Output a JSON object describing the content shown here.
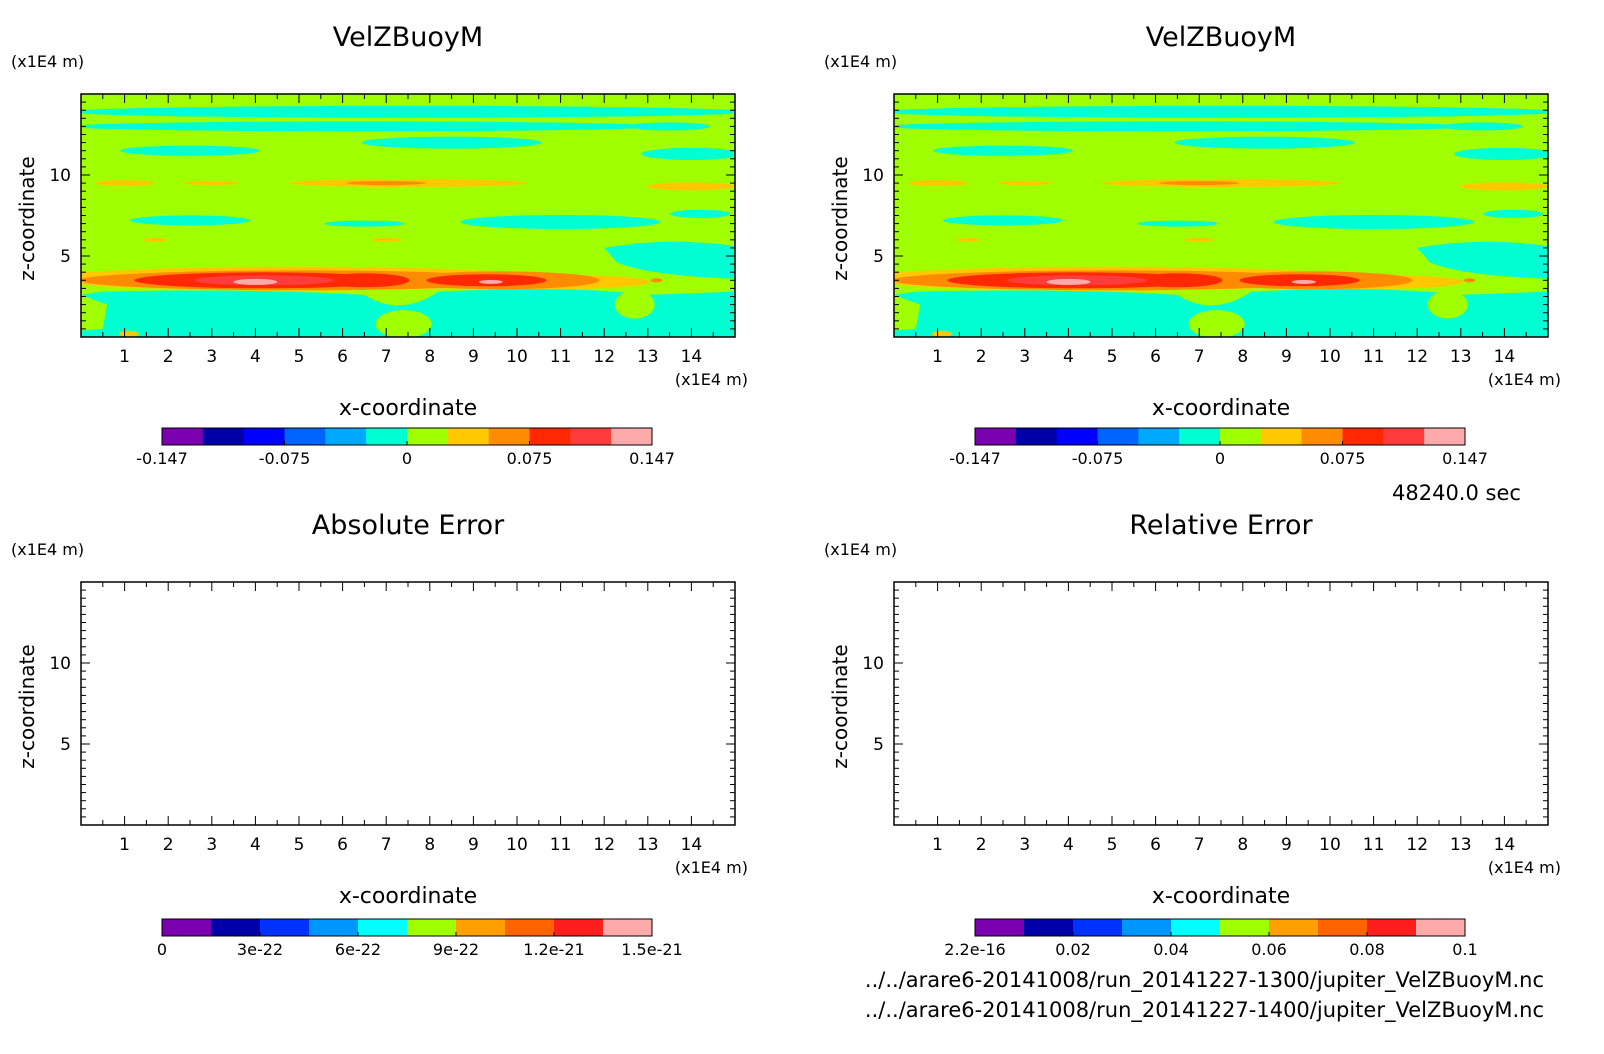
{
  "time_label": "48240.0 sec",
  "files": [
    "../../arare6-20141008/run_20141227-1300/jupiter_VelZBuoyM.nc",
    "../../arare6-20141008/run_20141227-1400/jupiter_VelZBuoyM.nc"
  ],
  "chart_data": [
    {
      "type": "heatmap",
      "title": "VelZBuoyM",
      "xlabel": "x-coordinate",
      "ylabel": "z-coordinate",
      "x_unit": "(x1E4 m)",
      "y_unit": "(x1E4 m)",
      "xlim": [
        0,
        15
      ],
      "ylim": [
        0,
        15
      ],
      "x_ticks": [
        "1",
        "2",
        "3",
        "4",
        "5",
        "6",
        "7",
        "8",
        "9",
        "10",
        "11",
        "12",
        "13",
        "14"
      ],
      "y_ticks": [
        "5",
        "10"
      ],
      "colorbar": {
        "ticks": [
          "-0.147",
          "-0.075",
          "0",
          "0.075",
          "0.147"
        ],
        "colors": [
          "#7a00b0",
          "#0000a8",
          "#0000ff",
          "#0064ff",
          "#00a8ff",
          "#00ffd2",
          "#a0ff00",
          "#ffc800",
          "#ff8c00",
          "#ff2800",
          "#ff3c3c",
          "#ffaaaa"
        ]
      },
      "field": "filled contours: bands of positive values near z=3-4 peaking near x=4 and x=9 (~0.147); negative values near z<3 and z=7, z=12-14"
    },
    {
      "type": "heatmap",
      "title": "VelZBuoyM",
      "xlabel": "x-coordinate",
      "ylabel": "z-coordinate",
      "x_unit": "(x1E4 m)",
      "y_unit": "(x1E4 m)",
      "xlim": [
        0,
        15
      ],
      "ylim": [
        0,
        15
      ],
      "x_ticks": [
        "1",
        "2",
        "3",
        "4",
        "5",
        "6",
        "7",
        "8",
        "9",
        "10",
        "11",
        "12",
        "13",
        "14"
      ],
      "y_ticks": [
        "5",
        "10"
      ],
      "colorbar": {
        "ticks": [
          "-0.147",
          "-0.075",
          "0",
          "0.075",
          "0.147"
        ],
        "colors": [
          "#7a00b0",
          "#0000a8",
          "#0000ff",
          "#0064ff",
          "#00a8ff",
          "#00ffd2",
          "#a0ff00",
          "#ffc800",
          "#ff8c00",
          "#ff2800",
          "#ff3c3c",
          "#ffaaaa"
        ]
      },
      "field": "identical to first panel"
    },
    {
      "type": "heatmap",
      "title": "Absolute Error",
      "xlabel": "x-coordinate",
      "ylabel": "z-coordinate",
      "x_unit": "(x1E4 m)",
      "y_unit": "(x1E4 m)",
      "xlim": [
        0,
        15
      ],
      "ylim": [
        0,
        15
      ],
      "x_ticks": [
        "1",
        "2",
        "3",
        "4",
        "5",
        "6",
        "7",
        "8",
        "9",
        "10",
        "11",
        "12",
        "13",
        "14"
      ],
      "y_ticks": [
        "5",
        "10"
      ],
      "colorbar": {
        "ticks": [
          "0",
          "3e-22",
          "6e-22",
          "9e-22",
          "1.2e-21",
          "1.5e-21"
        ],
        "colors": [
          "#7a00b0",
          "#0000a8",
          "#0032ff",
          "#0096ff",
          "#00ffff",
          "#a0ff00",
          "#ffa000",
          "#ff6400",
          "#ff1e1e",
          "#ffaaaa"
        ]
      },
      "field": "empty (no error)"
    },
    {
      "type": "heatmap",
      "title": "Relative Error",
      "xlabel": "x-coordinate",
      "ylabel": "z-coordinate",
      "x_unit": "(x1E4 m)",
      "y_unit": "(x1E4 m)",
      "xlim": [
        0,
        15
      ],
      "ylim": [
        0,
        15
      ],
      "x_ticks": [
        "1",
        "2",
        "3",
        "4",
        "5",
        "6",
        "7",
        "8",
        "9",
        "10",
        "11",
        "12",
        "13",
        "14"
      ],
      "y_ticks": [
        "5",
        "10"
      ],
      "colorbar": {
        "ticks": [
          "2.2e-16",
          "0.02",
          "0.04",
          "0.06",
          "0.08",
          "0.1"
        ],
        "colors": [
          "#7a00b0",
          "#0000a8",
          "#0032ff",
          "#0096ff",
          "#00ffff",
          "#a0ff00",
          "#ffa000",
          "#ff6400",
          "#ff1e1e",
          "#ffaaaa"
        ]
      },
      "field": "empty (no error)"
    }
  ]
}
